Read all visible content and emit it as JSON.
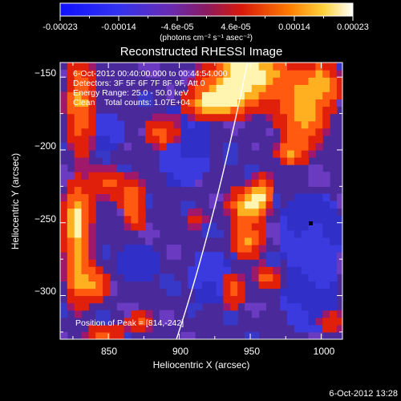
{
  "colorbar": {
    "tick_labels": [
      "-0.00023",
      "-0.00014",
      "-4.6e-05",
      "4.6e-05",
      "0.00014",
      "0.00023"
    ],
    "units_label": "(photons cm⁻² s⁻¹ asec⁻²)",
    "range": [
      -0.00023,
      0.00023
    ],
    "colormap": "blue-purple-red-orange-yellow-white"
  },
  "image": {
    "title": "Reconstructed RHESSI Image",
    "info_lines": [
      "6-Oct-2012 00:40:00.000 to 00:44:54.000",
      "Detectors: 3F 5F 6F 7F 8F 9F, Att 0",
      "Energy Range: 25.0 - 50.0 keV",
      "Clean    Total counts: 1.07E+04"
    ],
    "peak_label": "Position of Peak = [814,-242]",
    "xlabel": "Heliocentric X (arcsec)",
    "ylabel": "Heliocentric Y (arcsec)",
    "x_ticks": [
      {
        "value": 850,
        "label": "850"
      },
      {
        "value": 900,
        "label": "900"
      },
      {
        "value": 950,
        "label": "950"
      },
      {
        "value": 1000,
        "label": "1000"
      }
    ],
    "y_ticks": [
      {
        "value": -150,
        "label": "−150"
      },
      {
        "value": -200,
        "label": "−200"
      },
      {
        "value": -250,
        "label": "−250"
      },
      {
        "value": -300,
        "label": "−300"
      }
    ],
    "x_range": [
      816,
      1015
    ],
    "y_range": [
      -330,
      -140
    ],
    "limb_points": [
      [
        898,
        -330
      ],
      [
        925,
        -250
      ],
      [
        948,
        -140
      ]
    ]
  },
  "footer": {
    "timestamp": "6-Oct-2012 13:28"
  }
}
